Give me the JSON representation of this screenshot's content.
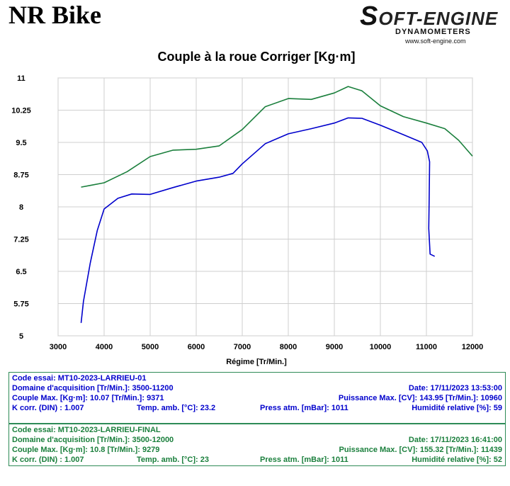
{
  "header": {
    "title": "NR Bike",
    "logo_brand_s": "S",
    "logo_brand_rest": "OFT-ENGINE",
    "logo_sub": "DYNAMOMETERS",
    "logo_url": "www.soft-engine.com"
  },
  "chart_data": {
    "type": "line",
    "title": "Couple à la roue Corriger [Kg·m]",
    "xlabel": "Régime [Tr/Min.]",
    "ylabel": "",
    "xlim": [
      3000,
      12000
    ],
    "ylim": [
      5,
      11
    ],
    "xticks": [
      3000,
      4000,
      5000,
      6000,
      7000,
      8000,
      9000,
      10000,
      11000,
      12000
    ],
    "yticks": [
      5,
      5.75,
      6.5,
      7.25,
      8,
      8.75,
      9.5,
      10.25,
      11
    ],
    "ytick_labels": [
      "5",
      "5.75",
      "6.5",
      "7.25",
      "8",
      "8.75",
      "9.5",
      "10.25",
      "11"
    ],
    "grid": true,
    "series": [
      {
        "color": "#1a7f3c",
        "points": [
          [
            3500,
            8.46
          ],
          [
            3700,
            8.5
          ],
          [
            4000,
            8.56
          ],
          [
            4500,
            8.82
          ],
          [
            5000,
            9.17
          ],
          [
            5500,
            9.32
          ],
          [
            6000,
            9.34
          ],
          [
            6500,
            9.42
          ],
          [
            7000,
            9.8
          ],
          [
            7500,
            10.33
          ],
          [
            8000,
            10.52
          ],
          [
            8500,
            10.5
          ],
          [
            9000,
            10.65
          ],
          [
            9300,
            10.8
          ],
          [
            9600,
            10.7
          ],
          [
            10000,
            10.35
          ],
          [
            10500,
            10.1
          ],
          [
            11000,
            9.95
          ],
          [
            11400,
            9.82
          ],
          [
            11700,
            9.55
          ],
          [
            12000,
            9.18
          ]
        ]
      },
      {
        "color": "#0000cc",
        "points": [
          [
            3500,
            5.3
          ],
          [
            3550,
            5.8
          ],
          [
            3700,
            6.7
          ],
          [
            3850,
            7.45
          ],
          [
            4000,
            7.95
          ],
          [
            4300,
            8.2
          ],
          [
            4600,
            8.3
          ],
          [
            5000,
            8.29
          ],
          [
            5500,
            8.45
          ],
          [
            6000,
            8.6
          ],
          [
            6500,
            8.69
          ],
          [
            6800,
            8.78
          ],
          [
            7000,
            9.0
          ],
          [
            7500,
            9.47
          ],
          [
            8000,
            9.7
          ],
          [
            8500,
            9.82
          ],
          [
            9000,
            9.95
          ],
          [
            9300,
            10.07
          ],
          [
            9600,
            10.06
          ],
          [
            10000,
            9.9
          ],
          [
            10500,
            9.68
          ],
          [
            10900,
            9.5
          ],
          [
            11020,
            9.3
          ],
          [
            11070,
            9.05
          ],
          [
            11060,
            8.2
          ],
          [
            11050,
            7.5
          ],
          [
            11080,
            6.9
          ],
          [
            11180,
            6.85
          ]
        ]
      }
    ]
  },
  "runs": [
    {
      "code": "Code essai: MT10-2023-LARRIEU-01",
      "domain": "Domaine d'acquisition [Tr/Min.]: 3500-11200",
      "date": "Date: 17/11/2023   13:53:00",
      "couple": "Couple Max. [Kg·m]: 10.07   [Tr/Min.]: 9371",
      "puissance": "Puissance Max. [CV]: 143.95   [Tr/Min.]: 10960",
      "kcorr": "K corr. (DIN) : 1.007",
      "temp": "Temp. amb. [°C]: 23.2",
      "press": "Press atm. [mBar]: 1011",
      "humid": "Humidité relative [%]: 59"
    },
    {
      "code": "Code essai: MT10-2023-LARRIEU-FINAL",
      "domain": "Domaine d'acquisition [Tr/Min.]: 3500-12000",
      "date": "Date: 17/11/2023   16:41:00",
      "couple": "Couple Max. [Kg·m]: 10.8   [Tr/Min.]: 9279",
      "puissance": "Puissance Max. [CV]: 155.32   [Tr/Min.]: 11439",
      "kcorr": "K corr. (DIN) : 1.007",
      "temp": "Temp. amb. [°C]: 23",
      "press": "Press atm. [mBar]: 1011",
      "humid": "Humidité relative [%]: 52"
    }
  ]
}
